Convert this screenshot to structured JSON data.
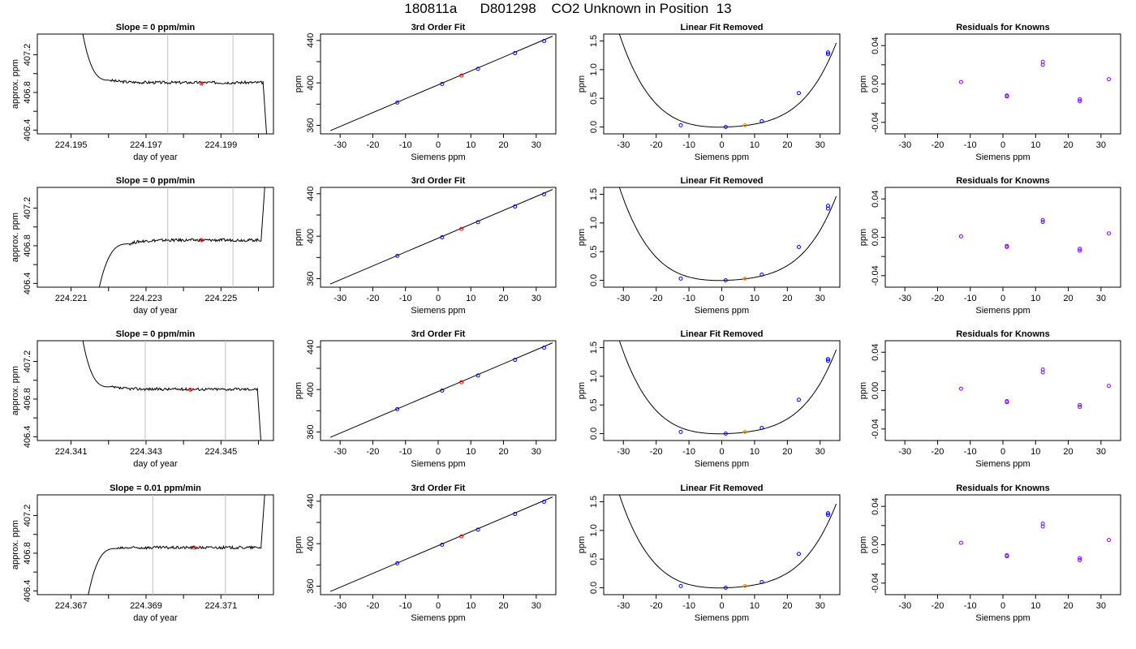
{
  "page_title": "180811a      D801298    CO2 Unknown in Position  13",
  "colors": {
    "known": "#0000ff",
    "unknown_fit": "#ff0000",
    "unknown_linear": "#ff8c00",
    "residual": "#8000ff",
    "gridline": "#bebebe",
    "line": "#000000"
  },
  "common": {
    "fit_title": "3rd Order Fit",
    "linfit_title": "Linear Fit Removed",
    "resid_title": "Residuals for Knowns",
    "xlabel_siemens": "Siemens ppm",
    "ylabel_ppm": "ppm",
    "xlabel_doy": "day of year",
    "ylabel_trace": "approx. ppm"
  },
  "chart_data": [
    {
      "row": 1,
      "trace": {
        "type": "line",
        "title": "Slope =  0  ppm/min",
        "xlabel": "day of year",
        "ylabel": "approx. ppm",
        "xlim": [
          224.1941,
          224.2004
        ],
        "ylim": [
          406.36,
          407.42
        ],
        "x_ticks": [
          224.195,
          224.197,
          224.199
        ],
        "x_minor_ticks": [
          224.196,
          224.198,
          224.2
        ],
        "x_tick_labels": [
          "224.195",
          "224.197",
          "224.199"
        ],
        "y_ticks": [
          406.4,
          406.6,
          406.8,
          407.0,
          407.2
        ],
        "y_tick_labels": [
          "406.4",
          "",
          "406.8",
          "",
          "407.2"
        ],
        "window": [
          224.19758,
          224.19932
        ],
        "level": 406.905,
        "start": [
          224.1953,
          407.45
        ],
        "settle": [
          224.19603,
          406.93
        ],
        "end": [
          224.20012,
          406.92
        ],
        "tail": "down",
        "tail_x": 224.20025,
        "marker": [
          224.19848,
          406.895
        ]
      },
      "fit": {
        "type": "line",
        "title": "3rd Order Fit",
        "xlabel": "Siemens ppm",
        "ylabel": "ppm",
        "xlim": [
          -36,
          36
        ],
        "ylim": [
          352,
          446
        ],
        "curve_x": [
          -33,
          35
        ],
        "curve_y": [
          355,
          444
        ],
        "x_ticks": [
          -30,
          -20,
          -10,
          0,
          10,
          20,
          30
        ],
        "y_ticks": [
          360,
          380,
          400,
          420,
          440
        ],
        "y_tick_labels": [
          "360",
          "",
          "400",
          "",
          "440"
        ],
        "knowns_x": [
          -12.5,
          1.2,
          12.2,
          23.5,
          32.4
        ],
        "knowns_y": [
          381.5,
          399.0,
          413.2,
          428.0,
          439.5
        ],
        "unknown": [
          7.1,
          406.9
        ]
      },
      "linfit": {
        "type": "line",
        "title": "Linear Fit Removed",
        "xlabel": "Siemens ppm",
        "ylabel": "ppm",
        "xlim": [
          -36,
          36
        ],
        "ylim": [
          -0.12,
          1.62
        ],
        "x_ticks": [
          -30,
          -20,
          -10,
          0,
          10,
          20,
          30
        ],
        "y_ticks": [
          0.0,
          0.5,
          1.0,
          1.5
        ],
        "y_tick_labels": [
          "0.0",
          "0.5",
          "1.0",
          "1.5"
        ],
        "poly": [
          -0.0025,
          0.00075,
          0.00047,
          -1.1e-05
        ],
        "curve_x": [
          -33,
          34.9
        ],
        "knowns_x": [
          -12.5,
          1.2,
          12.2,
          23.5,
          32.4
        ],
        "knowns_y": [
          0.03,
          0.0,
          0.1,
          0.59,
          1.27
        ],
        "knowns_y2": [
          0.03,
          0.0,
          0.1,
          0.59,
          1.3
        ],
        "unknown": [
          7.1,
          0.03
        ]
      },
      "resid": {
        "type": "scatter",
        "title": "Residuals for Knowns",
        "xlabel": "Siemens ppm",
        "ylabel": "ppm",
        "xlim": [
          -36,
          36
        ],
        "ylim": [
          -0.052,
          0.052
        ],
        "x_ticks": [
          -30,
          -20,
          -10,
          0,
          10,
          20,
          30
        ],
        "y_ticks": [
          -0.04,
          -0.02,
          0.0,
          0.02,
          0.04
        ],
        "y_tick_labels": [
          "-0.04",
          "",
          "0.00",
          "",
          "0.04"
        ],
        "points_x": [
          -12.8,
          1.2,
          1.2,
          12.2,
          12.2,
          23.5,
          23.5,
          32.4
        ],
        "points_y": [
          0.002,
          -0.012,
          -0.013,
          0.023,
          0.02,
          -0.016,
          -0.018,
          0.005
        ]
      }
    },
    {
      "row": 2,
      "trace": {
        "type": "line",
        "title": "Slope =  0  ppm/min",
        "xlabel": "day of year",
        "ylabel": "approx. ppm",
        "xlim": [
          224.2201,
          224.2264
        ],
        "ylim": [
          406.36,
          407.42
        ],
        "x_ticks": [
          224.221,
          224.223,
          224.225
        ],
        "x_minor_ticks": [
          224.222,
          224.224,
          224.226
        ],
        "x_tick_labels": [
          "224.221",
          "224.223",
          "224.225"
        ],
        "y_ticks": [
          406.4,
          406.6,
          406.8,
          407.0,
          407.2
        ],
        "y_tick_labels": [
          "406.4",
          "",
          "406.8",
          "",
          "407.2"
        ],
        "window": [
          224.22358,
          224.22532
        ],
        "level": 406.86,
        "start": [
          224.22172,
          406.3
        ],
        "settle": [
          224.22255,
          406.82
        ],
        "end": [
          224.22607,
          406.86
        ],
        "tail": "up",
        "tail_x": 224.2262,
        "marker": [
          224.22448,
          406.86
        ]
      },
      "fit": {
        "type": "line",
        "title": "3rd Order Fit",
        "xlabel": "Siemens ppm",
        "ylabel": "ppm",
        "xlim": [
          -36,
          36
        ],
        "ylim": [
          352,
          446
        ],
        "curve_x": [
          -33,
          35
        ],
        "curve_y": [
          355,
          444
        ],
        "x_ticks": [
          -30,
          -20,
          -10,
          0,
          10,
          20,
          30
        ],
        "y_ticks": [
          360,
          380,
          400,
          420,
          440
        ],
        "y_tick_labels": [
          "360",
          "",
          "400",
          "",
          "440"
        ],
        "knowns_x": [
          -12.5,
          1.2,
          12.2,
          23.5,
          32.4
        ],
        "knowns_y": [
          381.5,
          399.0,
          413.2,
          428.0,
          439.5
        ],
        "unknown": [
          7.1,
          406.9
        ]
      },
      "linfit": {
        "type": "line",
        "title": "Linear Fit Removed",
        "xlabel": "Siemens ppm",
        "ylabel": "ppm",
        "xlim": [
          -36,
          36
        ],
        "ylim": [
          -0.12,
          1.62
        ],
        "x_ticks": [
          -30,
          -20,
          -10,
          0,
          10,
          20,
          30
        ],
        "y_ticks": [
          0.0,
          0.5,
          1.0,
          1.5
        ],
        "y_tick_labels": [
          "0.0",
          "0.5",
          "1.0",
          "1.5"
        ],
        "poly": [
          -0.0025,
          0.00075,
          0.00047,
          -1.1e-05
        ],
        "curve_x": [
          -33,
          34.9
        ],
        "knowns_x": [
          -12.5,
          1.2,
          12.2,
          23.5,
          32.4
        ],
        "knowns_y": [
          0.03,
          0.0,
          0.1,
          0.58,
          1.25
        ],
        "knowns_y2": [
          0.03,
          0.0,
          0.1,
          0.58,
          1.3
        ],
        "unknown": [
          7.1,
          0.03
        ]
      },
      "resid": {
        "type": "scatter",
        "title": "Residuals for Knowns",
        "xlabel": "Siemens ppm",
        "ylabel": "ppm",
        "xlim": [
          -36,
          36
        ],
        "ylim": [
          -0.052,
          0.052
        ],
        "x_ticks": [
          -30,
          -20,
          -10,
          0,
          10,
          20,
          30
        ],
        "y_ticks": [
          -0.04,
          -0.02,
          0.0,
          0.02,
          0.04
        ],
        "y_tick_labels": [
          "-0.04",
          "",
          "0.00",
          "",
          "0.04"
        ],
        "points_x": [
          -12.8,
          1.2,
          1.2,
          12.2,
          12.2,
          23.5,
          23.5,
          32.4
        ],
        "points_y": [
          0.001,
          -0.009,
          -0.01,
          0.018,
          0.016,
          -0.012,
          -0.014,
          0.004
        ]
      }
    },
    {
      "row": 3,
      "trace": {
        "type": "line",
        "title": "Slope =  0  ppm/min",
        "xlabel": "day of year",
        "ylabel": "approx. ppm",
        "xlim": [
          224.3401,
          224.3464
        ],
        "ylim": [
          406.36,
          407.42
        ],
        "x_ticks": [
          224.341,
          224.343,
          224.345
        ],
        "x_minor_ticks": [
          224.342,
          224.344,
          224.346
        ],
        "x_tick_labels": [
          "224.341",
          "224.343",
          "224.345"
        ],
        "y_ticks": [
          406.4,
          406.6,
          406.8,
          407.0,
          407.2
        ],
        "y_tick_labels": [
          "406.4",
          "",
          "406.8",
          "",
          "407.2"
        ],
        "window": [
          224.34298,
          224.34512
        ],
        "level": 406.905,
        "start": [
          224.3413,
          407.45
        ],
        "settle": [
          224.34203,
          406.93
        ],
        "end": [
          224.34597,
          406.92
        ],
        "tail": "down",
        "tail_x": 224.3461,
        "marker": [
          224.34418,
          406.9
        ]
      },
      "fit": {
        "type": "line",
        "title": "3rd Order Fit",
        "xlabel": "Siemens ppm",
        "ylabel": "ppm",
        "xlim": [
          -36,
          36
        ],
        "ylim": [
          352,
          446
        ],
        "curve_x": [
          -33,
          35
        ],
        "curve_y": [
          355,
          444
        ],
        "x_ticks": [
          -30,
          -20,
          -10,
          0,
          10,
          20,
          30
        ],
        "y_ticks": [
          360,
          380,
          400,
          420,
          440
        ],
        "y_tick_labels": [
          "360",
          "",
          "400",
          "",
          "440"
        ],
        "knowns_x": [
          -12.5,
          1.2,
          12.2,
          23.5,
          32.4
        ],
        "knowns_y": [
          381.5,
          399.0,
          413.2,
          428.0,
          439.5
        ],
        "unknown": [
          7.1,
          406.9
        ]
      },
      "linfit": {
        "type": "line",
        "title": "Linear Fit Removed",
        "xlabel": "Siemens ppm",
        "ylabel": "ppm",
        "xlim": [
          -36,
          36
        ],
        "ylim": [
          -0.12,
          1.62
        ],
        "x_ticks": [
          -30,
          -20,
          -10,
          0,
          10,
          20,
          30
        ],
        "y_ticks": [
          0.0,
          0.5,
          1.0,
          1.5
        ],
        "y_tick_labels": [
          "0.0",
          "0.5",
          "1.0",
          "1.5"
        ],
        "poly": [
          -0.0025,
          0.00075,
          0.00047,
          -1.1e-05
        ],
        "curve_x": [
          -33,
          34.9
        ],
        "knowns_x": [
          -12.5,
          1.2,
          12.2,
          23.5,
          32.4
        ],
        "knowns_y": [
          0.03,
          0.0,
          0.1,
          0.59,
          1.27
        ],
        "knowns_y2": [
          0.03,
          0.0,
          0.1,
          0.59,
          1.3
        ],
        "unknown": [
          7.1,
          0.03
        ]
      },
      "resid": {
        "type": "scatter",
        "title": "Residuals for Knowns",
        "xlabel": "Siemens ppm",
        "ylabel": "ppm",
        "xlim": [
          -36,
          36
        ],
        "ylim": [
          -0.052,
          0.052
        ],
        "x_ticks": [
          -30,
          -20,
          -10,
          0,
          10,
          20,
          30
        ],
        "y_ticks": [
          -0.04,
          -0.02,
          0.0,
          0.02,
          0.04
        ],
        "y_tick_labels": [
          "-0.04",
          "",
          "0.00",
          "",
          "0.04"
        ],
        "points_x": [
          -12.8,
          1.2,
          1.2,
          12.2,
          12.2,
          23.5,
          23.5,
          32.4
        ],
        "points_y": [
          0.002,
          -0.011,
          -0.012,
          0.022,
          0.019,
          -0.015,
          -0.017,
          0.005
        ]
      }
    },
    {
      "row": 4,
      "trace": {
        "type": "line",
        "title": "Slope =  0.01  ppm/min",
        "xlabel": "day of year",
        "ylabel": "approx. ppm",
        "xlim": [
          224.3661,
          224.3724
        ],
        "ylim": [
          406.36,
          407.42
        ],
        "x_ticks": [
          224.367,
          224.369,
          224.371
        ],
        "x_minor_ticks": [
          224.368,
          224.37,
          224.372
        ],
        "x_tick_labels": [
          "224.367",
          "224.369",
          "224.371"
        ],
        "y_ticks": [
          406.4,
          406.6,
          406.8,
          407.0,
          407.2
        ],
        "y_tick_labels": [
          "406.4",
          "",
          "406.8",
          "",
          "407.2"
        ],
        "window": [
          224.36918,
          224.37112
        ],
        "level": 406.86,
        "start": [
          224.36743,
          406.3
        ],
        "settle": [
          224.36822,
          406.85
        ],
        "end": [
          224.37207,
          406.88
        ],
        "tail": "up",
        "tail_x": 224.3722,
        "marker": [
          224.37028,
          406.86
        ]
      },
      "fit": {
        "type": "line",
        "title": "3rd Order Fit",
        "xlabel": "Siemens ppm",
        "ylabel": "ppm",
        "xlim": [
          -36,
          36
        ],
        "ylim": [
          352,
          446
        ],
        "curve_x": [
          -33,
          35
        ],
        "curve_y": [
          355,
          444
        ],
        "x_ticks": [
          -30,
          -20,
          -10,
          0,
          10,
          20,
          30
        ],
        "y_ticks": [
          360,
          380,
          400,
          420,
          440
        ],
        "y_tick_labels": [
          "360",
          "",
          "400",
          "",
          "440"
        ],
        "knowns_x": [
          -12.5,
          1.2,
          12.2,
          23.5,
          32.4
        ],
        "knowns_y": [
          381.5,
          399.0,
          413.2,
          428.0,
          439.5
        ],
        "unknown": [
          7.1,
          406.9
        ]
      },
      "linfit": {
        "type": "line",
        "title": "Linear Fit Removed",
        "xlabel": "Siemens ppm",
        "ylabel": "ppm",
        "xlim": [
          -36,
          36
        ],
        "ylim": [
          -0.12,
          1.62
        ],
        "x_ticks": [
          -30,
          -20,
          -10,
          0,
          10,
          20,
          30
        ],
        "y_ticks": [
          0.0,
          0.5,
          1.0,
          1.5
        ],
        "y_tick_labels": [
          "0.0",
          "0.5",
          "1.0",
          "1.5"
        ],
        "poly": [
          -0.0025,
          0.00075,
          0.00047,
          -1.1e-05
        ],
        "curve_x": [
          -33,
          34.9
        ],
        "knowns_x": [
          -12.5,
          1.2,
          12.2,
          23.5,
          32.4
        ],
        "knowns_y": [
          0.03,
          0.0,
          0.1,
          0.59,
          1.27
        ],
        "knowns_y2": [
          0.03,
          0.0,
          0.1,
          0.59,
          1.3
        ],
        "unknown": [
          7.1,
          0.03
        ]
      },
      "resid": {
        "type": "scatter",
        "title": "Residuals for Knowns",
        "xlabel": "Siemens ppm",
        "ylabel": "ppm",
        "xlim": [
          -36,
          36
        ],
        "ylim": [
          -0.052,
          0.052
        ],
        "x_ticks": [
          -30,
          -20,
          -10,
          0,
          10,
          20,
          30
        ],
        "y_ticks": [
          -0.04,
          -0.02,
          0.0,
          0.02,
          0.04
        ],
        "y_tick_labels": [
          "-0.04",
          "",
          "0.00",
          "",
          "0.04"
        ],
        "points_x": [
          -12.8,
          1.2,
          1.2,
          12.2,
          12.2,
          23.5,
          23.5,
          32.4
        ],
        "points_y": [
          0.002,
          -0.011,
          -0.012,
          0.022,
          0.019,
          -0.014,
          -0.016,
          0.005
        ]
      }
    }
  ]
}
